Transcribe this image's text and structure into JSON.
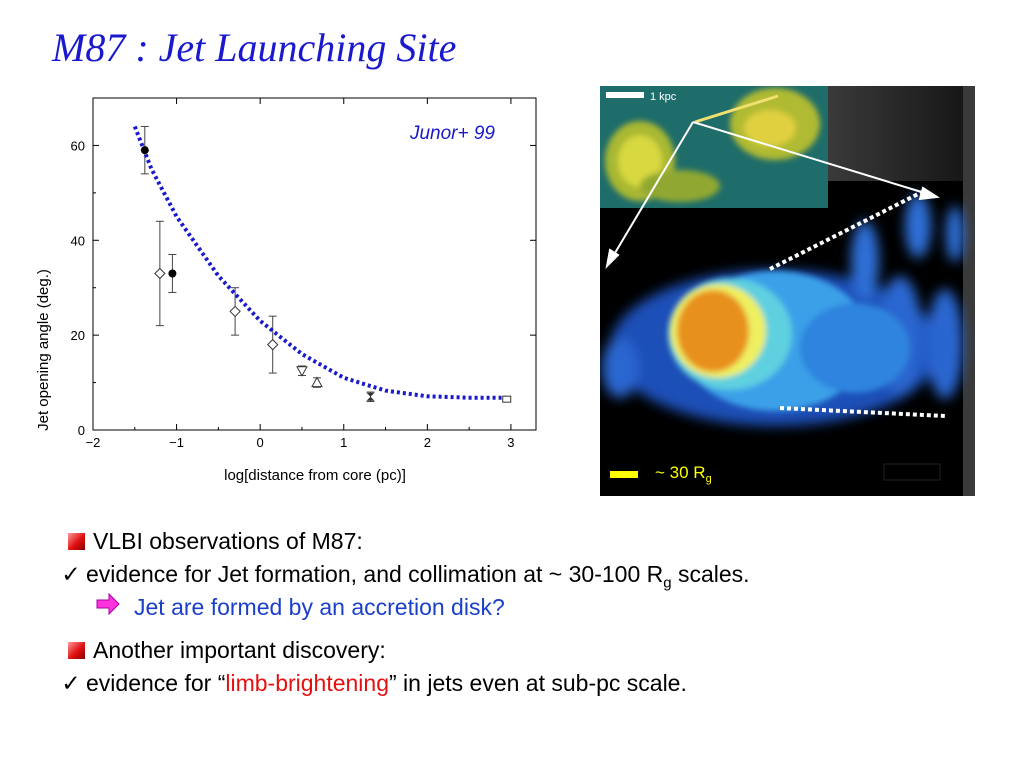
{
  "slide": {
    "title": "M87 : Jet Launching Site",
    "citation": "Junor+ 99"
  },
  "jet_image": {
    "scale_bar_label": "1 kpc",
    "rg_prefix": "~ 30 R",
    "rg_sub": "g",
    "colors": {
      "background": "#000000",
      "core": "#e8901a",
      "jet": "#1e5ec8",
      "inset": "#c8c820",
      "scale": "#ffff00"
    }
  },
  "bullets": {
    "b1_text": "VLBI observations of M87:",
    "b1_check": "✓",
    "b1_detail_pre": "evidence for Jet formation, and collimation at ~ 30-100 R",
    "b1_detail_sub": "g",
    "b1_detail_post": " scales.",
    "b1_arrow": "➡",
    "b1_conclusion": "Jet are formed by an accretion disk?",
    "b2_text": "Another important discovery:",
    "b2_check": "✓",
    "b2_pre": "evidence for “",
    "b2_highlight": "limb-brightening",
    "b2_post": "” in jets even at sub-pc scale."
  },
  "chart_data": {
    "type": "scatter",
    "xlabel": "log[distance from core (pc)]",
    "ylabel": "Jet opening angle (deg.)",
    "xlim": [
      -2,
      3.3
    ],
    "ylim": [
      0,
      70
    ],
    "xticks": [
      -2,
      -1,
      0,
      1,
      2,
      3
    ],
    "yticks": [
      0,
      20,
      40,
      60
    ],
    "grid": false,
    "series": [
      {
        "marker": "filled-circle",
        "points": [
          {
            "x": -1.38,
            "y": 59,
            "err": 5
          },
          {
            "x": -1.05,
            "y": 33,
            "err": 4
          }
        ]
      },
      {
        "marker": "open-diamond",
        "points": [
          {
            "x": -1.2,
            "y": 33,
            "err": 11
          },
          {
            "x": -0.3,
            "y": 25,
            "err": 5
          },
          {
            "x": 0.15,
            "y": 18,
            "err": 6
          }
        ]
      },
      {
        "marker": "open-triangle-down",
        "points": [
          {
            "x": 0.5,
            "y": 12.5,
            "err": 1
          }
        ]
      },
      {
        "marker": "open-triangle-up",
        "points": [
          {
            "x": 0.68,
            "y": 10,
            "err": 1
          }
        ]
      },
      {
        "marker": "bowtie",
        "points": [
          {
            "x": 1.32,
            "y": 7,
            "err": 1
          }
        ]
      },
      {
        "marker": "open-square",
        "points": [
          {
            "x": 2.95,
            "y": 6.5,
            "err": 0.5
          }
        ]
      }
    ],
    "fit_curve": {
      "style": "dotted",
      "color": "#1a1acc",
      "points": [
        [
          -1.5,
          64
        ],
        [
          -1.3,
          55
        ],
        [
          -1.0,
          45
        ],
        [
          -0.5,
          32.5
        ],
        [
          0,
          23
        ],
        [
          0.5,
          16
        ],
        [
          1,
          11
        ],
        [
          1.5,
          8.3
        ],
        [
          2,
          7.1
        ],
        [
          2.5,
          6.8
        ],
        [
          2.95,
          6.8
        ]
      ]
    }
  }
}
